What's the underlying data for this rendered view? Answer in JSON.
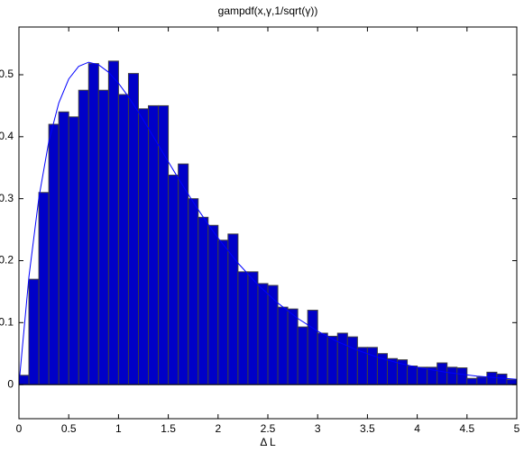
{
  "chart_data": {
    "type": "histogram",
    "title": "gampdf(x,γ,1/sqrt(γ))",
    "xlabel": "Δ L",
    "bins": [
      0,
      0.1,
      0.2,
      0.3,
      0.4,
      0.5,
      0.6,
      0.7,
      0.8,
      0.9,
      1,
      1.1,
      1.2,
      1.3,
      1.4,
      1.5,
      1.6,
      1.7,
      1.8,
      1.9,
      2,
      2.1,
      2.2,
      2.3,
      2.4,
      2.5,
      2.6,
      2.7,
      2.8,
      2.9,
      3,
      3.1,
      3.2,
      3.3,
      3.4,
      3.5,
      3.6,
      3.7,
      3.8,
      3.9,
      4,
      4.1,
      4.2,
      4.3,
      4.4,
      4.5,
      4.6,
      4.7,
      4.8,
      4.9,
      5
    ],
    "values": [
      0.015,
      0.17,
      0.31,
      0.42,
      0.44,
      0.432,
      0.475,
      0.518,
      0.475,
      0.522,
      0.468,
      0.502,
      0.445,
      0.45,
      0.45,
      0.338,
      0.356,
      0.3,
      0.27,
      0.257,
      0.233,
      0.243,
      0.182,
      0.182,
      0.163,
      0.16,
      0.125,
      0.122,
      0.093,
      0.12,
      0.083,
      0.078,
      0.083,
      0.077,
      0.06,
      0.06,
      0.05,
      0.042,
      0.04,
      0.03,
      0.028,
      0.028,
      0.035,
      0.028,
      0.027,
      0.01,
      0.012,
      0.02,
      0.017,
      0.008
    ],
    "color": "#0000c8",
    "edgecolor": "#404040",
    "fit": {
      "type": "line",
      "x": [
        0,
        0.1,
        0.2,
        0.3,
        0.4,
        0.5,
        0.6,
        0.7,
        0.8,
        0.9,
        1,
        1.1,
        1.2,
        1.3,
        1.4,
        1.5,
        1.6,
        1.7,
        1.8,
        1.9,
        2,
        2.2,
        2.4,
        2.6,
        2.8,
        3,
        3.2,
        3.4,
        3.6,
        3.8,
        4,
        4.3,
        4.6,
        5
      ],
      "values": [
        0,
        0.1736,
        0.3014,
        0.3925,
        0.4543,
        0.4931,
        0.5136,
        0.5202,
        0.5161,
        0.5041,
        0.4862,
        0.4643,
        0.4397,
        0.4135,
        0.3866,
        0.3596,
        0.333,
        0.3071,
        0.2823,
        0.2587,
        0.2364,
        0.196,
        0.1611,
        0.1316,
        0.1068,
        0.0862,
        0.0693,
        0.0555,
        0.0443,
        0.0352,
        0.0279,
        0.0197,
        0.0137,
        0.0085
      ],
      "color": "#0000ff"
    },
    "xlim": [
      0,
      5
    ],
    "ylim": [
      -0.055,
      0.577
    ],
    "xticks": [
      0,
      0.5,
      1,
      1.5,
      2,
      2.5,
      3,
      3.5,
      4,
      4.5,
      5
    ],
    "yticks": [
      0,
      0.1,
      0.2,
      0.3,
      0.4,
      0.5
    ]
  }
}
